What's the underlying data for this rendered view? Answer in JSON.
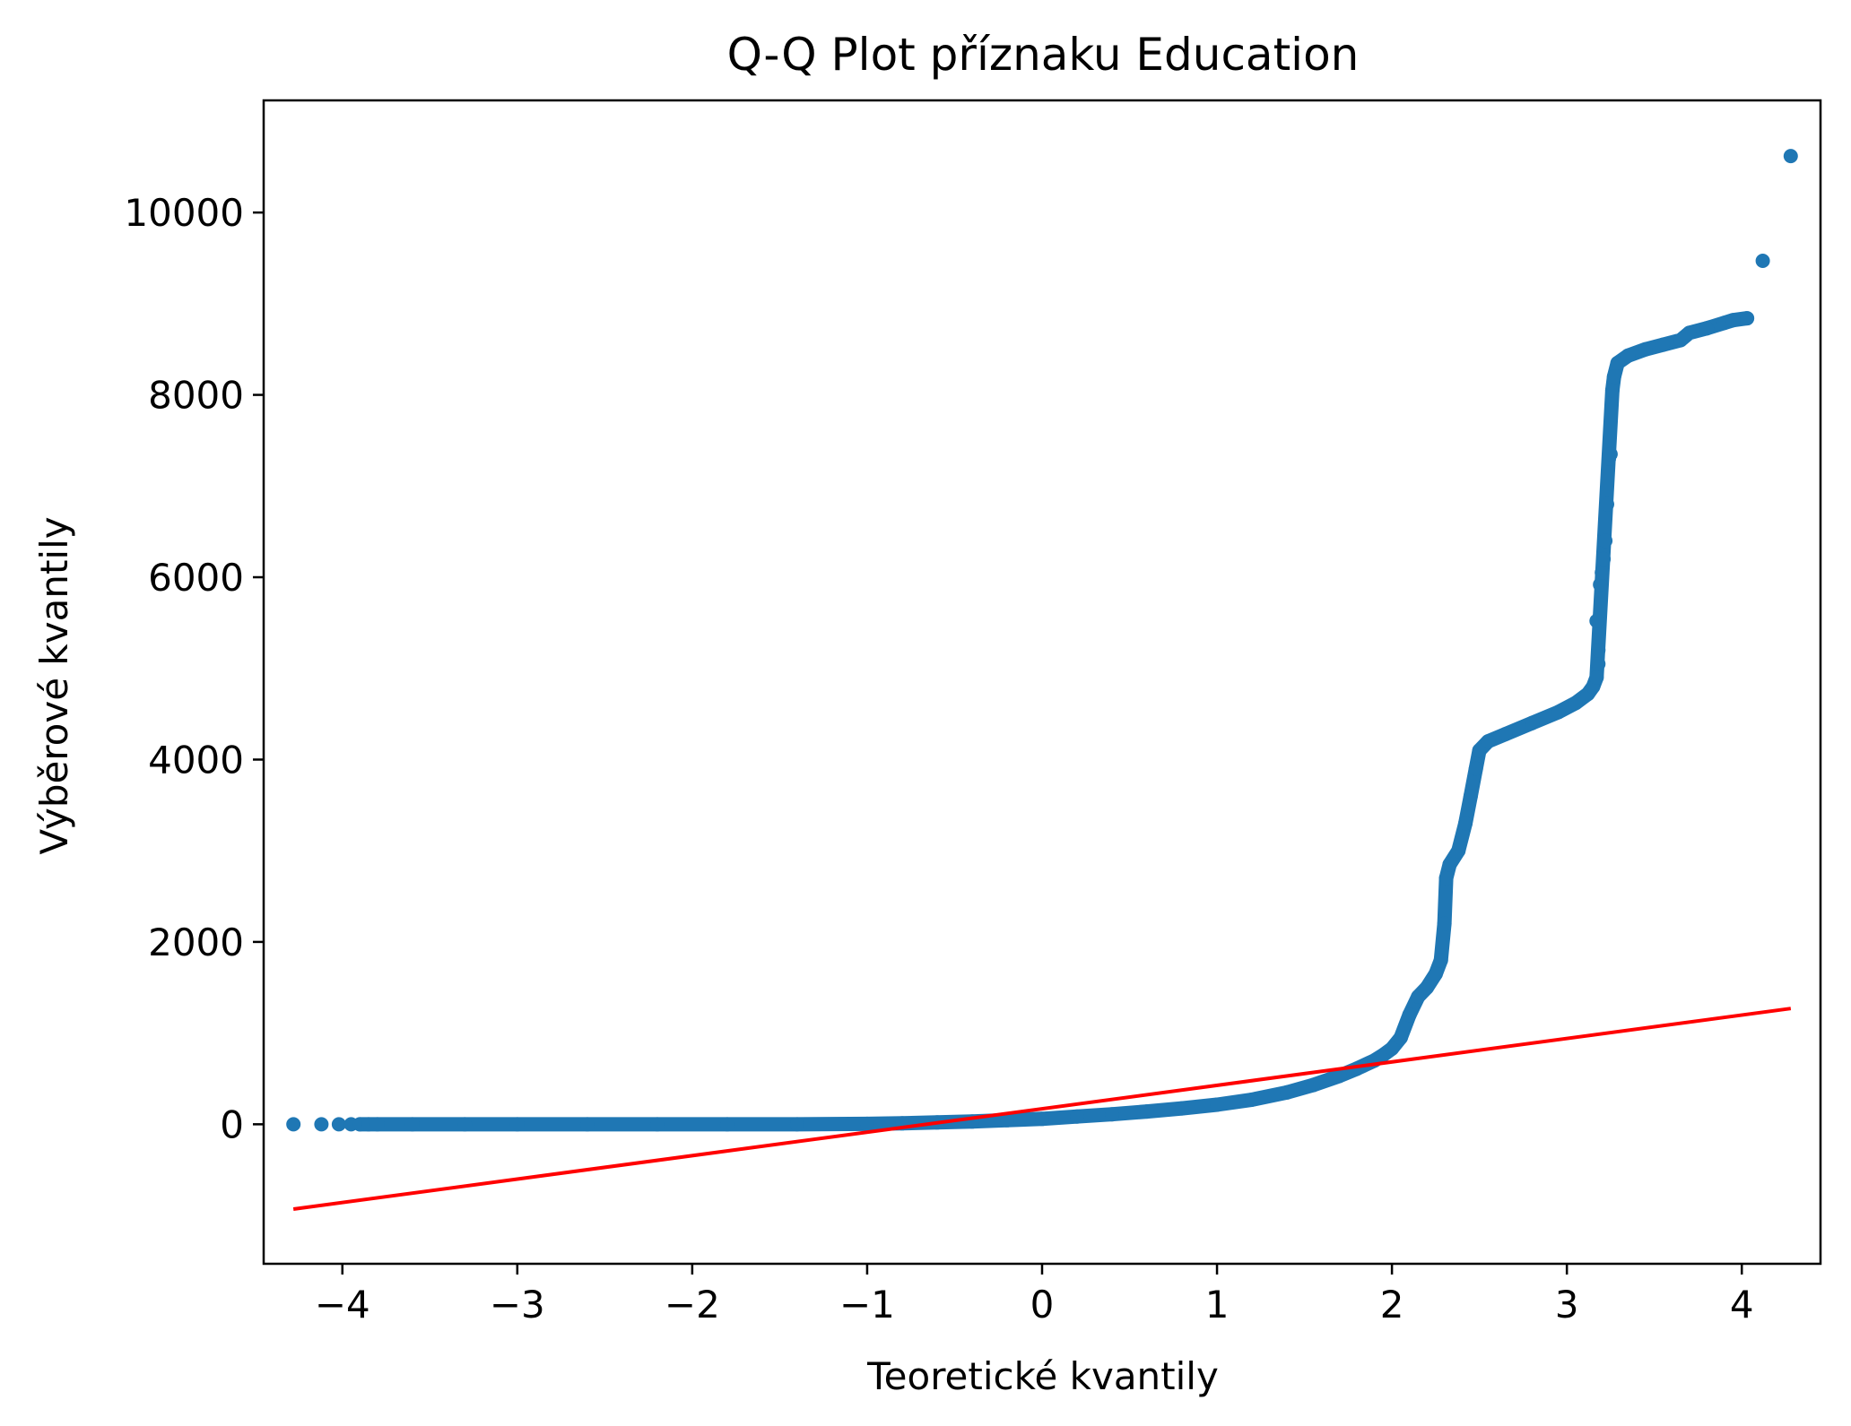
{
  "chart_data": {
    "type": "scatter",
    "title": "Q-Q Plot příznaku Education",
    "xlabel": "Teoretické kvantily",
    "ylabel": "Výběrové kvantily",
    "xlim": [
      -4.45,
      4.45
    ],
    "ylim": [
      -1530,
      11230
    ],
    "grid": false,
    "x_ticks": [
      {
        "value": -4,
        "label": "−4"
      },
      {
        "value": -3,
        "label": "−3"
      },
      {
        "value": -2,
        "label": "−2"
      },
      {
        "value": -1,
        "label": "−1"
      },
      {
        "value": 0,
        "label": "0"
      },
      {
        "value": 1,
        "label": "1"
      },
      {
        "value": 2,
        "label": "2"
      },
      {
        "value": 3,
        "label": "3"
      },
      {
        "value": 4,
        "label": "4"
      }
    ],
    "y_ticks": [
      {
        "value": 0,
        "label": "0"
      },
      {
        "value": 2000,
        "label": "2000"
      },
      {
        "value": 4000,
        "label": "4000"
      },
      {
        "value": 6000,
        "label": "6000"
      },
      {
        "value": 8000,
        "label": "8000"
      },
      {
        "value": 10000,
        "label": "10000"
      }
    ],
    "series": [
      {
        "kind": "scatter",
        "color": "#1f77b4",
        "points": [
          [
            -4.28,
            0
          ],
          [
            -4.12,
            0
          ],
          [
            -4.02,
            0
          ],
          [
            -3.95,
            0
          ],
          [
            -3.9,
            0
          ],
          [
            -3.85,
            0
          ],
          [
            -3.8,
            0
          ],
          [
            -3.6,
            0
          ],
          [
            -3.3,
            0
          ],
          [
            -3.0,
            0
          ],
          [
            -2.6,
            0
          ],
          [
            -2.2,
            0
          ],
          [
            -1.8,
            0
          ],
          [
            -1.4,
            0
          ],
          [
            -1.0,
            5
          ],
          [
            -0.8,
            10
          ],
          [
            -0.6,
            20
          ],
          [
            -0.4,
            30
          ],
          [
            -0.2,
            45
          ],
          [
            0.0,
            60
          ],
          [
            0.2,
            85
          ],
          [
            0.4,
            110
          ],
          [
            0.6,
            140
          ],
          [
            0.8,
            175
          ],
          [
            1.0,
            215
          ],
          [
            1.2,
            270
          ],
          [
            1.4,
            350
          ],
          [
            1.55,
            430
          ],
          [
            1.7,
            530
          ],
          [
            1.8,
            610
          ],
          [
            1.9,
            700
          ],
          [
            1.95,
            760
          ],
          [
            2.0,
            830
          ],
          [
            2.05,
            950
          ],
          [
            2.1,
            1200
          ],
          [
            2.15,
            1400
          ],
          [
            2.2,
            1500
          ],
          [
            2.25,
            1650
          ],
          [
            2.28,
            1800
          ],
          [
            2.3,
            2200
          ],
          [
            2.31,
            2700
          ],
          [
            2.33,
            2850
          ],
          [
            2.38,
            3000
          ],
          [
            2.42,
            3300
          ],
          [
            2.45,
            3600
          ],
          [
            2.48,
            3900
          ],
          [
            2.5,
            4100
          ],
          [
            2.55,
            4200
          ],
          [
            2.65,
            4280
          ],
          [
            2.8,
            4400
          ],
          [
            2.95,
            4520
          ],
          [
            3.05,
            4620
          ],
          [
            3.12,
            4720
          ],
          [
            3.15,
            4800
          ],
          [
            3.17,
            4900
          ],
          [
            3.18,
            5050
          ],
          [
            3.18,
            5200
          ],
          [
            3.17,
            5520
          ],
          [
            3.19,
            5920
          ],
          [
            3.2,
            6050
          ],
          [
            3.21,
            6200
          ],
          [
            3.22,
            6400
          ],
          [
            3.23,
            6800
          ],
          [
            3.24,
            7300
          ],
          [
            3.25,
            7350
          ],
          [
            3.26,
            8050
          ],
          [
            3.27,
            8200
          ],
          [
            3.29,
            8350
          ],
          [
            3.35,
            8430
          ],
          [
            3.45,
            8500
          ],
          [
            3.55,
            8550
          ],
          [
            3.65,
            8600
          ],
          [
            3.7,
            8680
          ],
          [
            3.8,
            8730
          ],
          [
            3.9,
            8790
          ],
          [
            3.95,
            8820
          ],
          [
            4.03,
            8840
          ],
          [
            4.12,
            9470
          ],
          [
            4.28,
            10620
          ]
        ]
      },
      {
        "kind": "line",
        "color": "#ff0000",
        "points": [
          [
            -4.28,
            -930
          ],
          [
            4.28,
            1270
          ]
        ]
      }
    ]
  }
}
